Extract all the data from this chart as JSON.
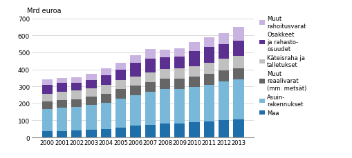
{
  "years": [
    2000,
    2001,
    2002,
    2003,
    2004,
    2005,
    2006,
    2007,
    2008,
    2009,
    2010,
    2011,
    2012,
    2013
  ],
  "maa": [
    35,
    35,
    40,
    45,
    50,
    58,
    68,
    75,
    80,
    80,
    90,
    95,
    100,
    105
  ],
  "asuin": [
    130,
    140,
    140,
    148,
    155,
    168,
    178,
    192,
    205,
    205,
    205,
    215,
    230,
    238
  ],
  "muut_reaal": [
    45,
    45,
    45,
    48,
    52,
    58,
    58,
    58,
    60,
    60,
    62,
    65,
    65,
    65
  ],
  "kateisraha": [
    45,
    48,
    50,
    48,
    50,
    52,
    55,
    55,
    58,
    62,
    62,
    65,
    68,
    70
  ],
  "osakkeet": [
    55,
    52,
    48,
    50,
    60,
    62,
    78,
    85,
    70,
    70,
    90,
    90,
    85,
    90
  ],
  "muut_rah": [
    30,
    28,
    32,
    35,
    38,
    42,
    48,
    55,
    42,
    48,
    52,
    58,
    65,
    80
  ],
  "colors": {
    "maa": "#1f6faa",
    "asuin": "#7ab8d9",
    "muut_reaal": "#666666",
    "kateisraha": "#c0c0c0",
    "osakkeet": "#5b3090",
    "muut_rah": "#c9b3e0"
  },
  "legend_labels": [
    "Muut\nrahoitusvarat",
    "Osakkeet\nja rahasto-\nosuudet",
    "Käteisraha ja\ntalletukset",
    "Muut\nreaalivarat\n(mm. metsät)",
    "Asuin-\nrakennukset",
    "Maa"
  ],
  "ylabel": "Mrd euroa",
  "ylim": [
    0,
    700
  ],
  "yticks": [
    0,
    100,
    200,
    300,
    400,
    500,
    600,
    700
  ]
}
